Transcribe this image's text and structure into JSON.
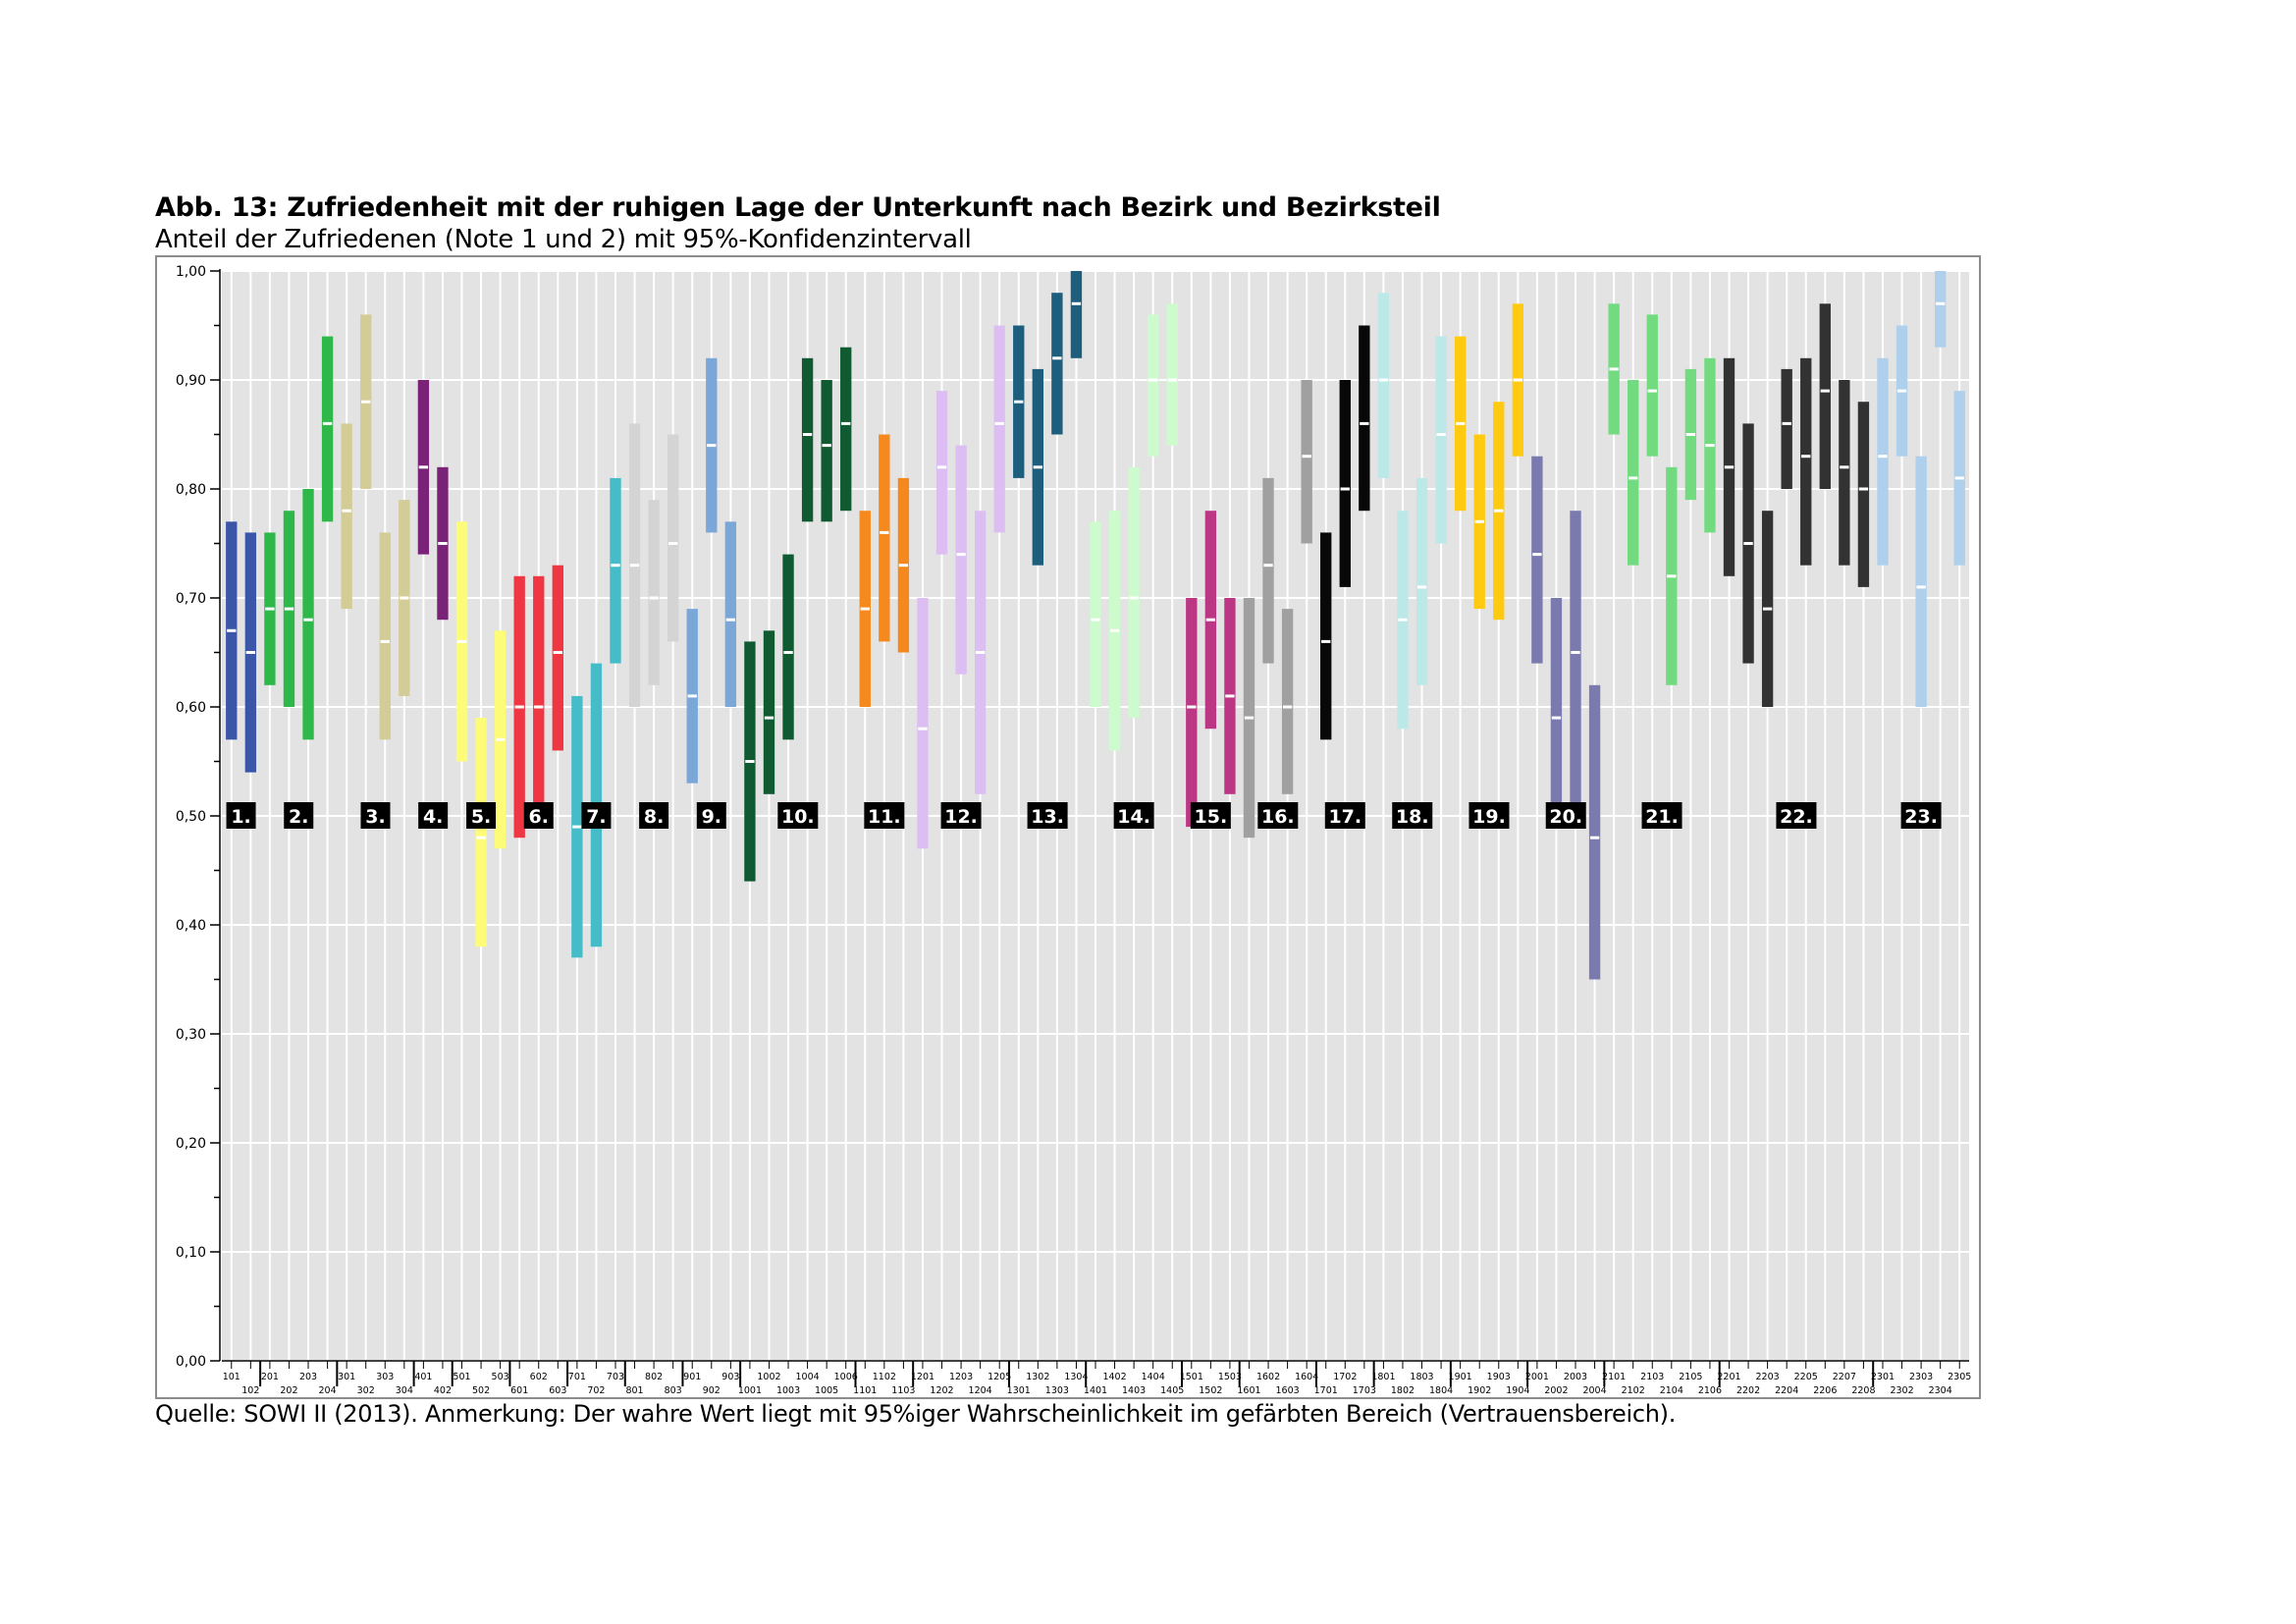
{
  "figure": {
    "title": "Abb. 13: Zufriedenheit mit der ruhigen Lage der Unterkunft nach Bezirk und Bezirksteil",
    "subtitle": "Anteil der Zufriedenen (Note 1 und 2) mit 95%-Konfidenzintervall",
    "footer": "Quelle: SOWI II (2013). Anmerkung: Der wahre Wert liegt mit 95%iger Wahrscheinlichkeit im gefärbten Bereich (Vertrauensbereich)."
  },
  "chart_data": {
    "type": "interval",
    "ylim": [
      0,
      1
    ],
    "yticks": [
      "0,00",
      "0,10",
      "0,20",
      "0,30",
      "0,40",
      "0,50",
      "0,60",
      "0,70",
      "0,80",
      "0,90",
      "1,00"
    ],
    "grid": true,
    "groups": [
      {
        "label": "1.",
        "color": "#3b55a8",
        "items": [
          {
            "code": "101",
            "low": 0.57,
            "mean": 0.67,
            "high": 0.77
          },
          {
            "code": "102",
            "low": 0.54,
            "mean": 0.65,
            "high": 0.76
          }
        ]
      },
      {
        "label": "2.",
        "color": "#2fb84a",
        "items": [
          {
            "code": "201",
            "low": 0.62,
            "mean": 0.69,
            "high": 0.76
          },
          {
            "code": "202",
            "low": 0.6,
            "mean": 0.69,
            "high": 0.78
          },
          {
            "code": "203",
            "low": 0.57,
            "mean": 0.68,
            "high": 0.8
          },
          {
            "code": "204",
            "low": 0.77,
            "mean": 0.86,
            "high": 0.94
          }
        ]
      },
      {
        "label": "3.",
        "color": "#d4cc96",
        "items": [
          {
            "code": "301",
            "low": 0.69,
            "mean": 0.78,
            "high": 0.86
          },
          {
            "code": "302",
            "low": 0.8,
            "mean": 0.88,
            "high": 0.96
          },
          {
            "code": "303",
            "low": 0.57,
            "mean": 0.66,
            "high": 0.76
          },
          {
            "code": "304",
            "low": 0.61,
            "mean": 0.7,
            "high": 0.79
          }
        ]
      },
      {
        "label": "4.",
        "color": "#7a2278",
        "items": [
          {
            "code": "401",
            "low": 0.74,
            "mean": 0.82,
            "high": 0.9
          },
          {
            "code": "402",
            "low": 0.68,
            "mean": 0.75,
            "high": 0.82
          }
        ]
      },
      {
        "label": "5.",
        "color": "#fcfc78",
        "items": [
          {
            "code": "501",
            "low": 0.55,
            "mean": 0.66,
            "high": 0.77
          },
          {
            "code": "502",
            "low": 0.38,
            "mean": 0.48,
            "high": 0.59
          },
          {
            "code": "503",
            "low": 0.47,
            "mean": 0.57,
            "high": 0.67
          }
        ]
      },
      {
        "label": "6.",
        "color": "#ee3742",
        "items": [
          {
            "code": "601",
            "low": 0.48,
            "mean": 0.6,
            "high": 0.72
          },
          {
            "code": "602",
            "low": 0.49,
            "mean": 0.6,
            "high": 0.72
          },
          {
            "code": "603",
            "low": 0.56,
            "mean": 0.65,
            "high": 0.73
          }
        ]
      },
      {
        "label": "7.",
        "color": "#46bcc8",
        "items": [
          {
            "code": "701",
            "low": 0.37,
            "mean": 0.49,
            "high": 0.61
          },
          {
            "code": "702",
            "low": 0.38,
            "mean": 0.5,
            "high": 0.64
          },
          {
            "code": "703",
            "low": 0.64,
            "mean": 0.73,
            "high": 0.81
          }
        ]
      },
      {
        "label": "8.",
        "color": "#d4d4d4",
        "items": [
          {
            "code": "801",
            "low": 0.6,
            "mean": 0.73,
            "high": 0.86
          },
          {
            "code": "802",
            "low": 0.62,
            "mean": 0.7,
            "high": 0.79
          },
          {
            "code": "803",
            "low": 0.66,
            "mean": 0.75,
            "high": 0.85
          }
        ]
      },
      {
        "label": "9.",
        "color": "#7aa7d8",
        "items": [
          {
            "code": "901",
            "low": 0.53,
            "mean": 0.61,
            "high": 0.69
          },
          {
            "code": "902",
            "low": 0.76,
            "mean": 0.84,
            "high": 0.92
          },
          {
            "code": "903",
            "low": 0.6,
            "mean": 0.68,
            "high": 0.77
          }
        ]
      },
      {
        "label": "10.",
        "color": "#0f5a30",
        "items": [
          {
            "code": "1001",
            "low": 0.44,
            "mean": 0.55,
            "high": 0.66
          },
          {
            "code": "1002",
            "low": 0.52,
            "mean": 0.59,
            "high": 0.67
          },
          {
            "code": "1003",
            "low": 0.57,
            "mean": 0.65,
            "high": 0.74
          },
          {
            "code": "1004",
            "low": 0.77,
            "mean": 0.85,
            "high": 0.92
          },
          {
            "code": "1005",
            "low": 0.77,
            "mean": 0.84,
            "high": 0.9
          },
          {
            "code": "1006",
            "low": 0.78,
            "mean": 0.86,
            "high": 0.93
          }
        ]
      },
      {
        "label": "11.",
        "color": "#f5891e",
        "items": [
          {
            "code": "1101",
            "low": 0.6,
            "mean": 0.69,
            "high": 0.78
          },
          {
            "code": "1102",
            "low": 0.66,
            "mean": 0.76,
            "high": 0.85
          },
          {
            "code": "1103",
            "low": 0.65,
            "mean": 0.73,
            "high": 0.81
          }
        ]
      },
      {
        "label": "12.",
        "color": "#ddbef2",
        "items": [
          {
            "code": "1201",
            "low": 0.47,
            "mean": 0.58,
            "high": 0.7
          },
          {
            "code": "1202",
            "low": 0.74,
            "mean": 0.82,
            "high": 0.89
          },
          {
            "code": "1203",
            "low": 0.63,
            "mean": 0.74,
            "high": 0.84
          },
          {
            "code": "1204",
            "low": 0.52,
            "mean": 0.65,
            "high": 0.78
          },
          {
            "code": "1205",
            "low": 0.76,
            "mean": 0.86,
            "high": 0.95
          }
        ]
      },
      {
        "label": "13.",
        "color": "#1d5e7c",
        "items": [
          {
            "code": "1301",
            "low": 0.81,
            "mean": 0.88,
            "high": 0.95
          },
          {
            "code": "1302",
            "low": 0.73,
            "mean": 0.82,
            "high": 0.91
          },
          {
            "code": "1303",
            "low": 0.85,
            "mean": 0.92,
            "high": 0.98
          },
          {
            "code": "1304",
            "low": 0.92,
            "mean": 0.97,
            "high": 1.0
          }
        ]
      },
      {
        "label": "14.",
        "color": "#cdfbcd",
        "items": [
          {
            "code": "1401",
            "low": 0.6,
            "mean": 0.68,
            "high": 0.77
          },
          {
            "code": "1402",
            "low": 0.56,
            "mean": 0.67,
            "high": 0.78
          },
          {
            "code": "1403",
            "low": 0.59,
            "mean": 0.7,
            "high": 0.82
          },
          {
            "code": "1404",
            "low": 0.83,
            "mean": 0.9,
            "high": 0.96
          },
          {
            "code": "1405",
            "low": 0.84,
            "mean": 0.9,
            "high": 0.97
          }
        ]
      },
      {
        "label": "15.",
        "color": "#bb3683",
        "items": [
          {
            "code": "1501",
            "low": 0.49,
            "mean": 0.6,
            "high": 0.7
          },
          {
            "code": "1502",
            "low": 0.58,
            "mean": 0.68,
            "high": 0.78
          },
          {
            "code": "1503",
            "low": 0.52,
            "mean": 0.61,
            "high": 0.7
          }
        ]
      },
      {
        "label": "16.",
        "color": "#a0a0a0",
        "items": [
          {
            "code": "1601",
            "low": 0.48,
            "mean": 0.59,
            "high": 0.7
          },
          {
            "code": "1602",
            "low": 0.64,
            "mean": 0.73,
            "high": 0.81
          },
          {
            "code": "1603",
            "low": 0.52,
            "mean": 0.6,
            "high": 0.69
          },
          {
            "code": "1604",
            "low": 0.75,
            "mean": 0.83,
            "high": 0.9
          }
        ]
      },
      {
        "label": "17.",
        "color": "#080808",
        "items": [
          {
            "code": "1701",
            "low": 0.57,
            "mean": 0.66,
            "high": 0.76
          },
          {
            "code": "1702",
            "low": 0.71,
            "mean": 0.8,
            "high": 0.9
          },
          {
            "code": "1703",
            "low": 0.78,
            "mean": 0.86,
            "high": 0.95
          }
        ]
      },
      {
        "label": "18.",
        "color": "#bce8e8",
        "items": [
          {
            "code": "1801",
            "low": 0.81,
            "mean": 0.9,
            "high": 0.98
          },
          {
            "code": "1802",
            "low": 0.58,
            "mean": 0.68,
            "high": 0.78
          },
          {
            "code": "1803",
            "low": 0.62,
            "mean": 0.71,
            "high": 0.81
          },
          {
            "code": "1804",
            "low": 0.75,
            "mean": 0.85,
            "high": 0.94
          }
        ]
      },
      {
        "label": "19.",
        "color": "#ffca10",
        "items": [
          {
            "code": "1901",
            "low": 0.78,
            "mean": 0.86,
            "high": 0.94
          },
          {
            "code": "1902",
            "low": 0.69,
            "mean": 0.77,
            "high": 0.85
          },
          {
            "code": "1903",
            "low": 0.68,
            "mean": 0.78,
            "high": 0.88
          },
          {
            "code": "1904",
            "low": 0.83,
            "mean": 0.9,
            "high": 0.97
          }
        ]
      },
      {
        "label": "20.",
        "color": "#7a7aaf",
        "items": [
          {
            "code": "2001",
            "low": 0.64,
            "mean": 0.74,
            "high": 0.83
          },
          {
            "code": "2002",
            "low": 0.5,
            "mean": 0.59,
            "high": 0.7
          },
          {
            "code": "2003",
            "low": 0.5,
            "mean": 0.65,
            "high": 0.78
          },
          {
            "code": "2004",
            "low": 0.35,
            "mean": 0.48,
            "high": 0.62
          }
        ]
      },
      {
        "label": "21.",
        "color": "#72db80",
        "items": [
          {
            "code": "2101",
            "low": 0.85,
            "mean": 0.91,
            "high": 0.97
          },
          {
            "code": "2102",
            "low": 0.73,
            "mean": 0.81,
            "high": 0.9
          },
          {
            "code": "2103",
            "low": 0.83,
            "mean": 0.89,
            "high": 0.96
          },
          {
            "code": "2104",
            "low": 0.62,
            "mean": 0.72,
            "high": 0.82
          },
          {
            "code": "2105",
            "low": 0.79,
            "mean": 0.85,
            "high": 0.91
          },
          {
            "code": "2106",
            "low": 0.76,
            "mean": 0.84,
            "high": 0.92
          }
        ]
      },
      {
        "label": "22.",
        "color": "#323232",
        "items": [
          {
            "code": "2201",
            "low": 0.72,
            "mean": 0.82,
            "high": 0.92
          },
          {
            "code": "2202",
            "low": 0.64,
            "mean": 0.75,
            "high": 0.86
          },
          {
            "code": "2203",
            "low": 0.6,
            "mean": 0.69,
            "high": 0.78
          },
          {
            "code": "2204",
            "low": 0.8,
            "mean": 0.86,
            "high": 0.91
          },
          {
            "code": "2205",
            "low": 0.73,
            "mean": 0.83,
            "high": 0.92
          },
          {
            "code": "2206",
            "low": 0.8,
            "mean": 0.89,
            "high": 0.97
          },
          {
            "code": "2207",
            "low": 0.73,
            "mean": 0.82,
            "high": 0.9
          },
          {
            "code": "2208",
            "low": 0.71,
            "mean": 0.8,
            "high": 0.88
          }
        ]
      },
      {
        "label": "23.",
        "color": "#aed0ec",
        "items": [
          {
            "code": "2301",
            "low": 0.73,
            "mean": 0.83,
            "high": 0.92
          },
          {
            "code": "2302",
            "low": 0.83,
            "mean": 0.89,
            "high": 0.95
          },
          {
            "code": "2303",
            "low": 0.6,
            "mean": 0.71,
            "high": 0.83
          },
          {
            "code": "2304",
            "low": 0.93,
            "mean": 0.97,
            "high": 1.0
          },
          {
            "code": "2305",
            "low": 0.73,
            "mean": 0.81,
            "high": 0.89
          }
        ]
      }
    ]
  }
}
